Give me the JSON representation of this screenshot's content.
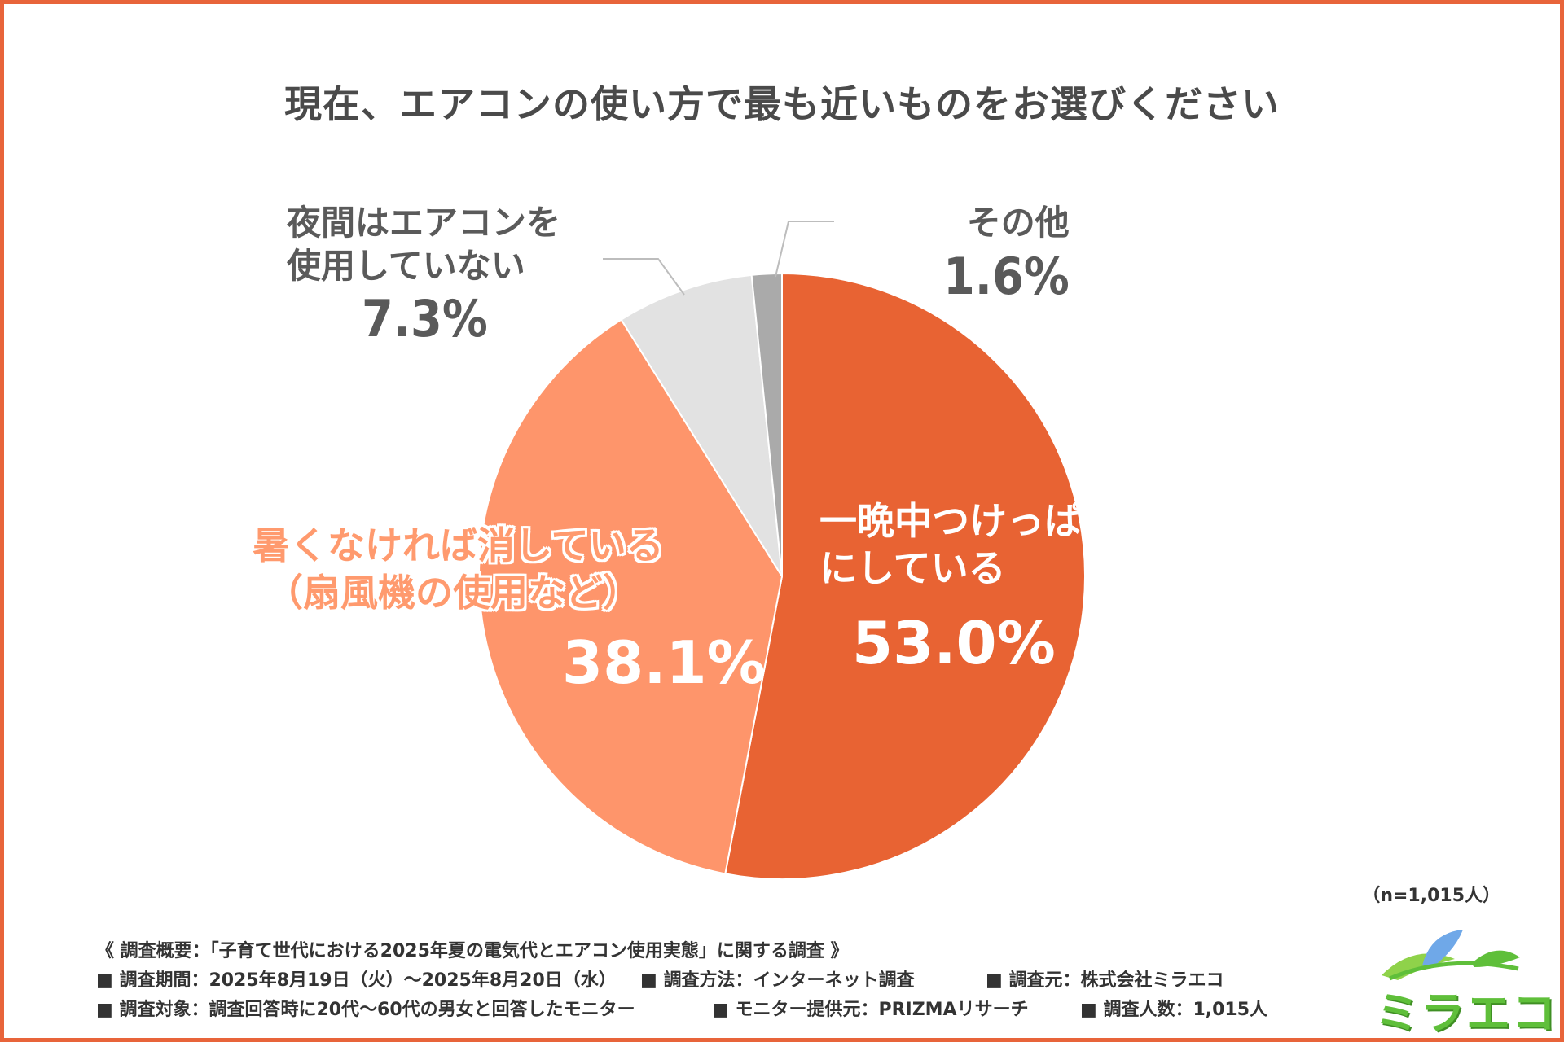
{
  "title": "現在、エアコンの使い方で最も近いものをお選びください",
  "chart_data": {
    "type": "pie",
    "title": "現在、エアコンの使い方で最も近いものをお選びください",
    "start": "12 o'clock, clockwise",
    "slices": [
      {
        "label_lines": [
          "一晩中つけっぱなし",
          "にしている"
        ],
        "value": 53.0,
        "display": "53.0%",
        "color": "#e86333"
      },
      {
        "label_lines": [
          "暑くなければ消している",
          "（扇風機の使用など）"
        ],
        "value": 38.1,
        "display": "38.1%",
        "color": "#fe956b"
      },
      {
        "label_lines": [
          "夜間はエアコンを",
          "使用していない"
        ],
        "value": 7.3,
        "display": "7.3%",
        "color": "#e2e2e2"
      },
      {
        "label_lines": [
          "その他"
        ],
        "value": 1.6,
        "display": "1.6%",
        "color": "#aaaaaa"
      }
    ]
  },
  "sample_size": "（n=1,015人）",
  "notes": [
    "《 調査概要：「子育て世代における2025年夏の電気代とエアコン使用実態」に関する調査 》",
    "■ 調査期間：2025年8月19日（火）～2025年8月20日（水）",
    "■ 調査方法：インターネット調査",
    "■ 調査元：株式会社ミラエコ",
    "■ 調査対象：調査回答時に20代～60代の男女と回答したモニター",
    "■ モニター提供元：PRIZMAリサーチ",
    "■ 調査人数：1,015人"
  ],
  "logo": {
    "text": "ミラエコ",
    "color": "#5fbf3a",
    "leaf_colors": [
      "#8fd24a",
      "#6fa8e8"
    ],
    "icon": "leaf-logo-icon"
  }
}
